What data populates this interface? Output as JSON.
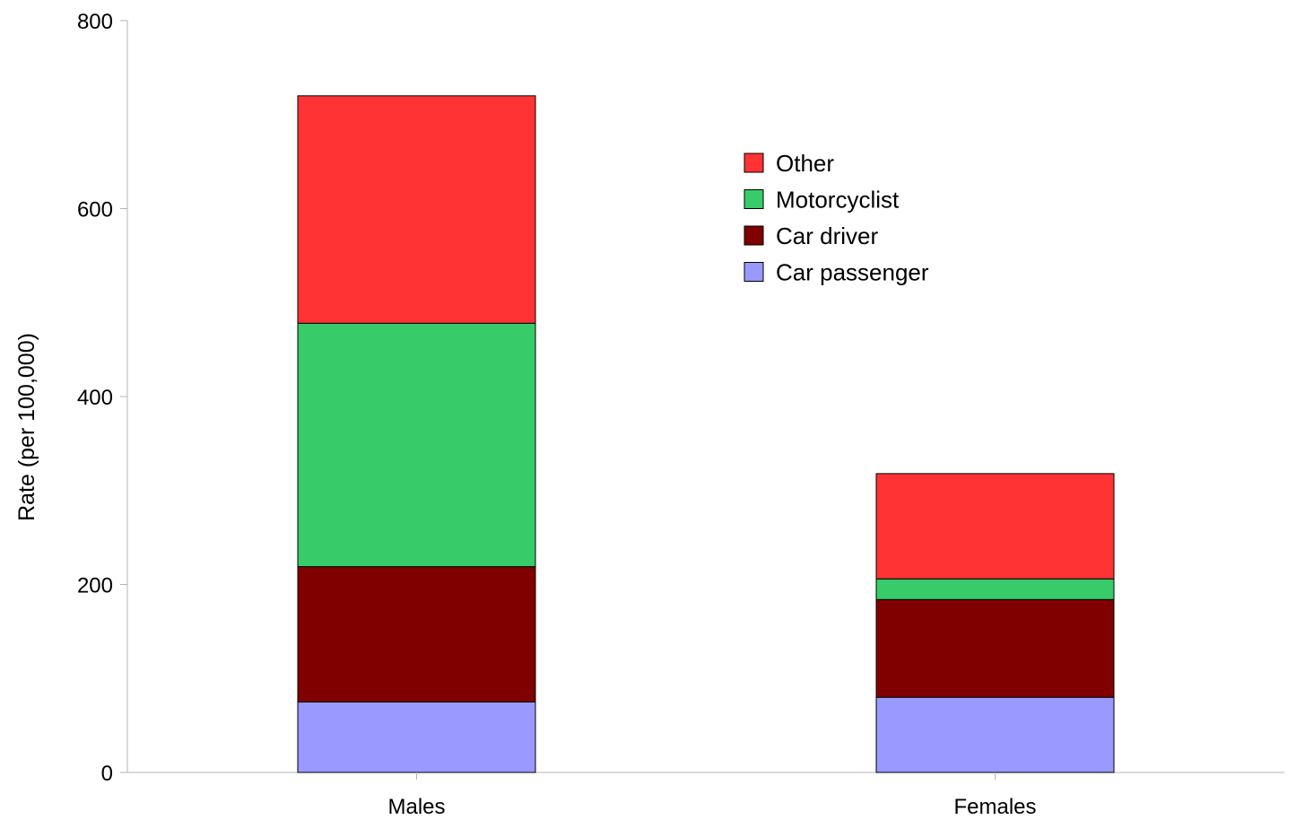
{
  "chart_data": {
    "type": "bar",
    "stacked": true,
    "title": "",
    "xlabel": "",
    "ylabel": "Rate (per 100,000)",
    "categories": [
      "Males",
      "Females"
    ],
    "ylim": [
      0,
      800
    ],
    "yticks": [
      0,
      200,
      400,
      600,
      800
    ],
    "grid": false,
    "legend_position": "top-right",
    "series": [
      {
        "name": "Car passenger",
        "color": "#9999ff",
        "values": [
          75,
          80
        ]
      },
      {
        "name": "Car driver",
        "color": "#800000",
        "values": [
          144,
          104
        ]
      },
      {
        "name": "Motorcyclist",
        "color": "#38cb6a",
        "values": [
          259,
          22
        ]
      },
      {
        "name": "Other",
        "color": "#ff3333",
        "values": [
          242,
          112
        ]
      }
    ],
    "legend_order": [
      "Other",
      "Motorcyclist",
      "Car driver",
      "Car passenger"
    ]
  }
}
